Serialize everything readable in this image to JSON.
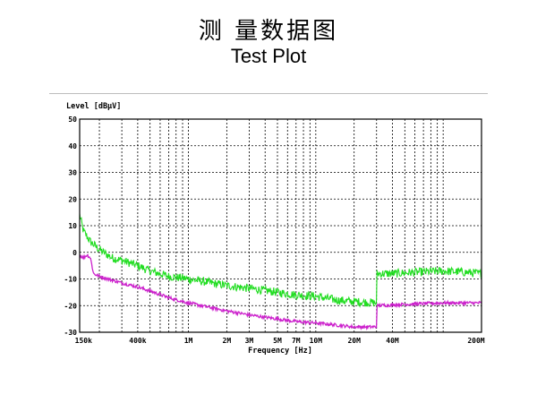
{
  "header": {
    "title_cn": "测 量数据图",
    "title_en": "Test Plot"
  },
  "chart_data": {
    "type": "line",
    "xscale": "log",
    "xlabel": "Frequency [Hz]",
    "ylabel": "Level [dBµV]",
    "xlim": [
      140000,
      200000000
    ],
    "ylim": [
      -30,
      50
    ],
    "yticks": [
      50,
      40,
      30,
      20,
      10,
      0,
      -10,
      -20,
      -30
    ],
    "ytick_labels": [
      "50",
      "40",
      "30",
      "20",
      "10",
      "0",
      "-10",
      "-20",
      "-30"
    ],
    "xticks": [
      150000,
      400000,
      1000000,
      2000000,
      3000000,
      5000000,
      7000000,
      10000000,
      20000000,
      40000000,
      200000000
    ],
    "xtick_labels": [
      "150k",
      "400k",
      "1M",
      "2M",
      "3M",
      "5M",
      "7M",
      "10M",
      "20M",
      "40M",
      "200M"
    ],
    "grid": true,
    "colors": {
      "green": "#22dd22",
      "magenta": "#cc22cc"
    },
    "series": [
      {
        "color": "#22dd22",
        "x": [
          140000,
          150000,
          170000,
          200000,
          250000,
          300000,
          400000,
          500000,
          700000,
          1000000,
          2000000,
          3000000,
          5000000,
          7000000,
          10000000,
          15000000,
          20000000,
          30000000,
          30000000,
          40000000,
          60000000,
          100000000,
          150000000,
          200000000
        ],
        "y": [
          14,
          8,
          4,
          1,
          -2,
          -3,
          -5,
          -7,
          -9,
          -10,
          -12.5,
          -13.5,
          -15,
          -16,
          -16.5,
          -18,
          -18.5,
          -19,
          -8,
          -8,
          -7.5,
          -7,
          -7.5,
          -8
        ]
      },
      {
        "color": "#cc22cc",
        "x": [
          140000,
          150000,
          160000,
          170000,
          180000,
          200000,
          300000,
          400000,
          500000,
          700000,
          1000000,
          2000000,
          3000000,
          5000000,
          7000000,
          10000000,
          20000000,
          30000000,
          30000000,
          50000000,
          100000000,
          150000000,
          200000000
        ],
        "y": [
          -1,
          -2,
          -1,
          -2,
          -8,
          -9,
          -11.5,
          -13,
          -14.5,
          -17,
          -19,
          -22,
          -23.5,
          -25,
          -26,
          -26.5,
          -28,
          -28,
          -20,
          -19.5,
          -19,
          -19,
          -19
        ]
      }
    ]
  }
}
